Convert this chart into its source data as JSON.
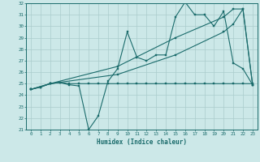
{
  "xlabel": "Humidex (Indice chaleur)",
  "bg_color": "#cce8e8",
  "grid_color": "#aacccc",
  "line_color": "#1a6b6b",
  "xlim": [
    -0.5,
    23.5
  ],
  "ylim": [
    21,
    32
  ],
  "yticks": [
    21,
    22,
    23,
    24,
    25,
    26,
    27,
    28,
    29,
    30,
    31,
    32
  ],
  "xticks": [
    0,
    1,
    2,
    3,
    4,
    5,
    6,
    7,
    8,
    9,
    10,
    11,
    12,
    13,
    14,
    15,
    16,
    17,
    18,
    19,
    20,
    21,
    22,
    23
  ],
  "series_main_x": [
    0,
    1,
    2,
    3,
    4,
    5,
    6,
    7,
    8,
    9,
    10,
    11,
    12,
    13,
    14,
    15,
    16,
    17,
    18,
    19,
    20,
    21,
    22,
    23
  ],
  "series_main_y": [
    24.5,
    24.7,
    25.0,
    25.1,
    24.9,
    24.8,
    21.0,
    22.2,
    25.2,
    26.3,
    29.5,
    27.3,
    27.0,
    27.5,
    27.5,
    30.8,
    32.1,
    31.0,
    31.0,
    30.0,
    31.3,
    26.8,
    26.3,
    24.9
  ],
  "series_flat_x": [
    0,
    1,
    2,
    3,
    4,
    5,
    6,
    7,
    8,
    9,
    10,
    11,
    12,
    13,
    14,
    15,
    16,
    17,
    18,
    19,
    20,
    21,
    22,
    23
  ],
  "series_flat_y": [
    24.5,
    24.7,
    25.0,
    25.1,
    25.0,
    25.0,
    25.0,
    25.0,
    25.0,
    25.0,
    25.0,
    25.0,
    25.0,
    25.0,
    25.0,
    25.0,
    25.0,
    25.0,
    25.0,
    25.0,
    25.0,
    25.0,
    25.0,
    25.0
  ],
  "series_trend1_x": [
    0,
    2,
    9,
    15,
    20,
    21,
    22,
    23
  ],
  "series_trend1_y": [
    24.5,
    25.0,
    26.5,
    29.0,
    30.8,
    31.5,
    31.5,
    24.9
  ],
  "series_trend2_x": [
    0,
    2,
    9,
    15,
    20,
    21,
    22,
    23
  ],
  "series_trend2_y": [
    24.5,
    25.0,
    25.8,
    27.5,
    29.5,
    30.2,
    31.5,
    24.9
  ]
}
